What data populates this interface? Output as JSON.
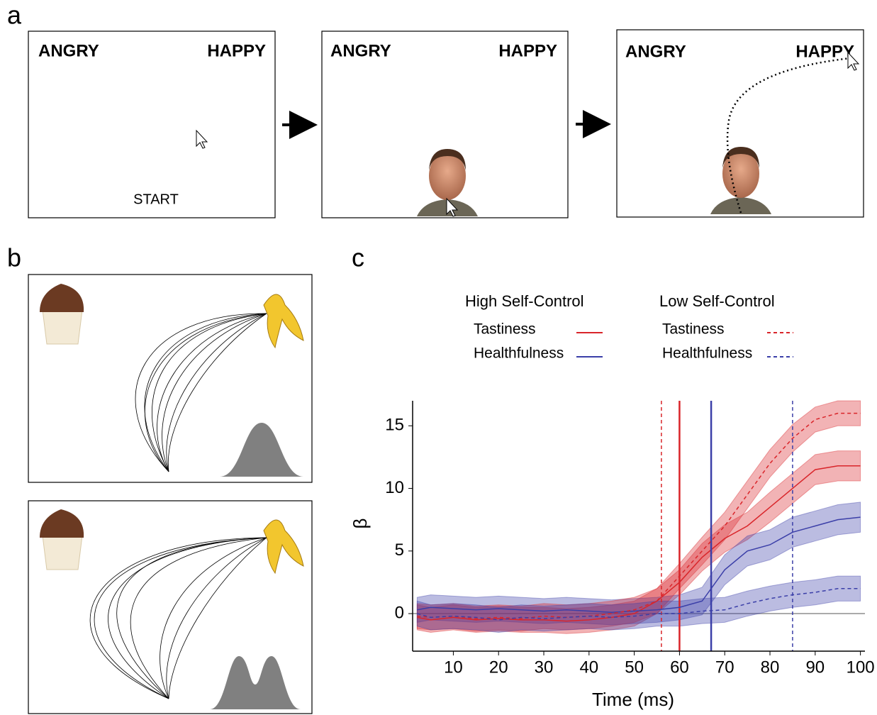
{
  "panels": {
    "a": {
      "label": "a",
      "screens": [
        {
          "left": "ANGRY",
          "right": "HAPPY",
          "prompt": "START"
        },
        {
          "left": "ANGRY",
          "right": "HAPPY"
        },
        {
          "left": "ANGRY",
          "right": "HAPPY"
        }
      ]
    },
    "b": {
      "label": "b"
    },
    "c": {
      "label": "c"
    }
  },
  "chart_data": {
    "type": "line",
    "legend_groups": [
      "High Self-Control",
      "Low Self-Control"
    ],
    "x_label": "Time (ms)",
    "y_label": "β",
    "x": [
      2,
      5,
      10,
      15,
      20,
      25,
      30,
      35,
      40,
      45,
      50,
      55,
      60,
      65,
      70,
      75,
      80,
      85,
      90,
      95,
      100
    ],
    "xlim": [
      1,
      101
    ],
    "xticks": [
      10,
      20,
      30,
      40,
      50,
      60,
      70,
      80,
      90,
      100
    ],
    "ylim": [
      -3,
      17
    ],
    "yticks": [
      0,
      5,
      10,
      15
    ],
    "series": [
      {
        "name": "Tastiness",
        "color": "#d9252a",
        "dashed": false,
        "onset": 60,
        "values": [
          -0.3,
          -0.5,
          -0.3,
          -0.5,
          -0.4,
          -0.5,
          -0.5,
          -0.6,
          -0.5,
          -0.3,
          0,
          1,
          2.5,
          4.5,
          6,
          7,
          8.5,
          10,
          11.5,
          11.8,
          11.8
        ],
        "errors": [
          1,
          1,
          1,
          1,
          1,
          1,
          1,
          1,
          1,
          1,
          1,
          1,
          1,
          1.1,
          1.1,
          1.1,
          1.2,
          1.2,
          1.2,
          1.2,
          1.2
        ]
      },
      {
        "name": "Healthfulness",
        "color": "#3b3fa8",
        "dashed": false,
        "onset": 67,
        "values": [
          0.3,
          0.5,
          0.4,
          0.3,
          0.4,
          0.3,
          0.2,
          0.3,
          0.2,
          0.1,
          0.2,
          0.3,
          0.5,
          1,
          3.5,
          5,
          5.5,
          6.5,
          7,
          7.5,
          7.7
        ],
        "errors": [
          1,
          1,
          1,
          1,
          1,
          1,
          1,
          1,
          1,
          1,
          1,
          1,
          1,
          1.1,
          1.2,
          1.2,
          1.2,
          1.2,
          1.2,
          1.2,
          1.2
        ]
      },
      {
        "name": "Tastiness",
        "color": "#d9252a",
        "dashed": true,
        "onset": 56,
        "values": [
          -0.2,
          -0.3,
          -0.2,
          -0.4,
          -0.3,
          -0.4,
          -0.2,
          -0.3,
          -0.2,
          0,
          0.3,
          1,
          3,
          5,
          7,
          9.5,
          12,
          14,
          15.5,
          16,
          16
        ],
        "errors": [
          1,
          1,
          1,
          1,
          1,
          1,
          1,
          1,
          1,
          1,
          1,
          1,
          1,
          1.1,
          1.1,
          1.1,
          1.1,
          1.1,
          1,
          1,
          1
        ]
      },
      {
        "name": "Healthfulness",
        "color": "#3b3fa8",
        "dashed": true,
        "onset": 85,
        "values": [
          0,
          -0.3,
          -0.2,
          -0.3,
          -0.5,
          -0.3,
          -0.4,
          -0.3,
          -0.2,
          -0.3,
          -0.2,
          0,
          0,
          0.2,
          0.3,
          0.8,
          1.2,
          1.5,
          1.7,
          2,
          2
        ],
        "errors": [
          1,
          1,
          1,
          1,
          1,
          1,
          1,
          1,
          1,
          1,
          1,
          1,
          1,
          1,
          1,
          1,
          1,
          1,
          1,
          1,
          1
        ]
      }
    ]
  }
}
